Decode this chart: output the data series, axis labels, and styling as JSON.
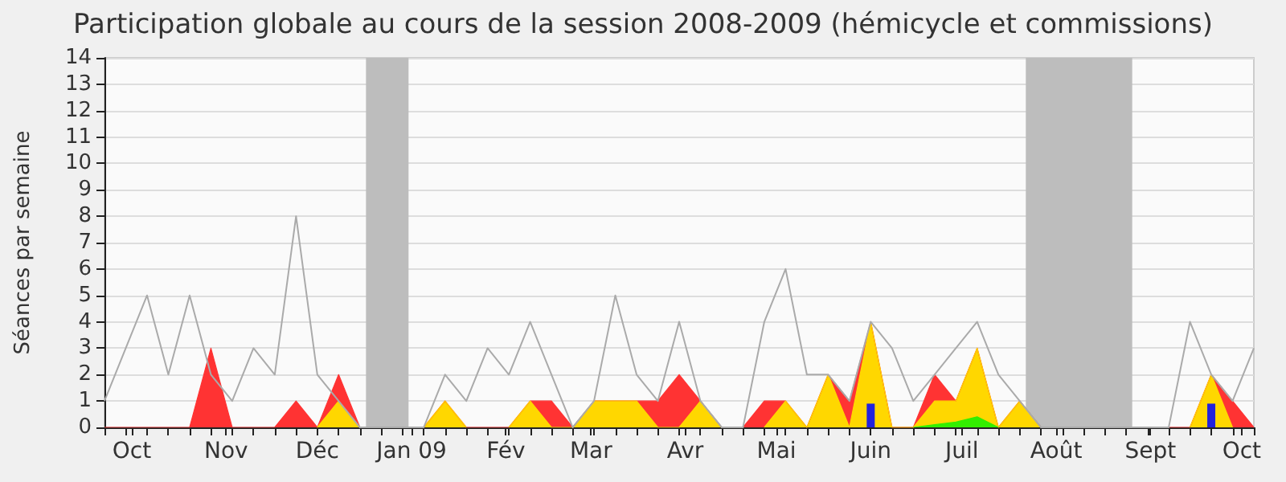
{
  "chart_data": {
    "type": "area",
    "title": "Participation globale au cours de la session 2008-2009 (hémicycle et commissions)",
    "ylabel": "Séances par semaine",
    "x": [
      "2008-09-22",
      "2008-09-29",
      "2008-10-06",
      "2008-10-13",
      "2008-10-20",
      "2008-10-27",
      "2008-11-03",
      "2008-11-10",
      "2008-11-17",
      "2008-11-24",
      "2008-12-01",
      "2008-12-08",
      "2008-12-15",
      "2008-12-22",
      "2008-12-29",
      "2009-01-05",
      "2009-01-12",
      "2009-01-19",
      "2009-01-26",
      "2009-02-02",
      "2009-02-09",
      "2009-02-16",
      "2009-02-23",
      "2009-03-02",
      "2009-03-09",
      "2009-03-16",
      "2009-03-23",
      "2009-03-30",
      "2009-04-06",
      "2009-04-13",
      "2009-04-20",
      "2009-04-27",
      "2009-05-04",
      "2009-05-11",
      "2009-05-18",
      "2009-05-25",
      "2009-06-01",
      "2009-06-08",
      "2009-06-15",
      "2009-06-22",
      "2009-06-29",
      "2009-07-06",
      "2009-07-13",
      "2009-07-20",
      "2009-07-27",
      "2009-08-03",
      "2009-08-10",
      "2009-08-17",
      "2009-08-24",
      "2009-08-31",
      "2009-09-07",
      "2009-09-14",
      "2009-09-21",
      "2009-09-28",
      "2009-10-05"
    ],
    "series": [
      {
        "color": "#ff3333",
        "values": [
          0,
          0,
          0,
          0,
          0,
          3,
          0,
          0,
          0,
          1,
          0,
          2,
          0,
          0,
          0,
          0,
          1,
          0,
          0,
          0,
          1,
          1,
          0,
          1,
          1,
          1,
          1,
          2,
          1,
          0,
          0,
          1,
          1,
          0,
          2,
          1,
          4,
          0,
          0,
          2,
          1,
          3,
          0,
          1,
          0,
          0,
          0,
          0,
          0,
          0,
          0,
          0,
          2,
          1,
          0
        ]
      },
      {
        "color": "#ffd700",
        "values": [
          null,
          null,
          null,
          null,
          null,
          null,
          null,
          null,
          null,
          null,
          0,
          1,
          0,
          null,
          null,
          0,
          1,
          0,
          null,
          0,
          1,
          0,
          0,
          1,
          1,
          1,
          0,
          0,
          1,
          0,
          null,
          0,
          1,
          0,
          2,
          0,
          4,
          0,
          0,
          1,
          1,
          3,
          0,
          1,
          0,
          null,
          null,
          null,
          null,
          null,
          null,
          0,
          2,
          0,
          null
        ]
      },
      {
        "color": "#33ee00",
        "values": [
          null,
          null,
          null,
          null,
          null,
          null,
          null,
          null,
          null,
          null,
          null,
          null,
          null,
          null,
          null,
          null,
          null,
          null,
          null,
          null,
          null,
          null,
          null,
          null,
          null,
          null,
          null,
          null,
          null,
          null,
          null,
          null,
          null,
          null,
          null,
          null,
          null,
          null,
          0,
          0.1,
          0.2,
          0.4,
          0,
          null,
          null,
          null,
          null,
          null,
          null,
          null,
          null,
          null,
          null,
          null,
          null
        ]
      },
      {
        "type": "bar",
        "color": "#2222dd",
        "values": [
          null,
          null,
          null,
          null,
          null,
          null,
          null,
          null,
          null,
          null,
          null,
          null,
          null,
          null,
          null,
          null,
          null,
          null,
          null,
          null,
          null,
          null,
          null,
          null,
          null,
          null,
          null,
          null,
          null,
          null,
          null,
          null,
          null,
          null,
          null,
          null,
          0.9,
          null,
          null,
          null,
          null,
          null,
          null,
          null,
          null,
          null,
          null,
          null,
          null,
          null,
          null,
          null,
          0.9,
          null,
          null
        ]
      },
      {
        "type": "line",
        "color": "#aaaaaa",
        "values": [
          1,
          3,
          5,
          2,
          5,
          2,
          1,
          3,
          2,
          8,
          2,
          1,
          0,
          0,
          0,
          0,
          2,
          1,
          3,
          2,
          4,
          2,
          0,
          1,
          5,
          2,
          1,
          4,
          1,
          0,
          0,
          4,
          6,
          2,
          2,
          1,
          4,
          3,
          1,
          2,
          3,
          4,
          2,
          1,
          0,
          0,
          0,
          0,
          0,
          0,
          0,
          4,
          2,
          1,
          3
        ]
      }
    ],
    "xlim": [
      "2008-09-22",
      "2009-10-05"
    ],
    "xticks": [
      {
        "value": "2008-09-22",
        "label": null
      },
      {
        "value": "2008-09-29",
        "label": null
      },
      {
        "value": "2008-10-06",
        "label": null
      },
      {
        "value": "2008-10-13",
        "label": null
      },
      {
        "value": "2008-10-20",
        "label": null
      },
      {
        "value": "2008-10-27",
        "label": null
      },
      {
        "value": "2008-11-03",
        "label": null
      },
      {
        "value": "2008-11-10",
        "label": null
      },
      {
        "value": "2008-11-17",
        "label": null
      },
      {
        "value": "2008-11-24",
        "label": null
      },
      {
        "value": "2008-12-01",
        "label": null
      },
      {
        "value": "2008-12-08",
        "label": null
      },
      {
        "value": "2008-12-15",
        "label": null
      },
      {
        "value": "2008-12-22",
        "label": null
      },
      {
        "value": "2008-12-29",
        "label": null
      },
      {
        "value": "2009-01-05",
        "label": null
      },
      {
        "value": "2009-01-12",
        "label": null
      },
      {
        "value": "2009-01-19",
        "label": null
      },
      {
        "value": "2009-01-26",
        "label": null
      },
      {
        "value": "2009-02-02",
        "label": null
      },
      {
        "value": "2009-02-09",
        "label": null
      },
      {
        "value": "2009-02-16",
        "label": null
      },
      {
        "value": "2009-02-23",
        "label": null
      },
      {
        "value": "2009-03-02",
        "label": null
      },
      {
        "value": "2009-03-09",
        "label": null
      },
      {
        "value": "2009-03-16",
        "label": null
      },
      {
        "value": "2009-03-23",
        "label": null
      },
      {
        "value": "2009-03-30",
        "label": null
      },
      {
        "value": "2009-04-06",
        "label": null
      },
      {
        "value": "2009-04-13",
        "label": null
      },
      {
        "value": "2009-04-20",
        "label": null
      },
      {
        "value": "2009-04-27",
        "label": null
      },
      {
        "value": "2009-05-04",
        "label": null
      },
      {
        "value": "2009-05-11",
        "label": null
      },
      {
        "value": "2009-05-18",
        "label": null
      },
      {
        "value": "2009-05-25",
        "label": null
      },
      {
        "value": "2009-06-01",
        "label": null
      },
      {
        "value": "2009-06-08",
        "label": null
      },
      {
        "value": "2009-06-15",
        "label": null
      },
      {
        "value": "2009-06-22",
        "label": null
      },
      {
        "value": "2009-06-29",
        "label": null
      },
      {
        "value": "2009-07-06",
        "label": null
      },
      {
        "value": "2009-07-13",
        "label": null
      },
      {
        "value": "2009-07-20",
        "label": null
      },
      {
        "value": "2009-07-27",
        "label": null
      },
      {
        "value": "2009-08-03",
        "label": null
      },
      {
        "value": "2009-08-10",
        "label": null
      },
      {
        "value": "2009-08-17",
        "label": null
      },
      {
        "value": "2009-08-24",
        "label": null
      },
      {
        "value": "2009-08-31",
        "label": null
      },
      {
        "value": "2009-09-07",
        "label": null
      },
      {
        "value": "2009-09-14",
        "label": null
      },
      {
        "value": "2009-09-21",
        "label": null
      },
      {
        "value": "2009-09-28",
        "label": null
      },
      {
        "value": "2009-10-05",
        "label": null
      },
      {
        "value": "2008-10-01",
        "label": "Oct"
      },
      {
        "value": "2008-11-01",
        "label": "Nov"
      },
      {
        "value": "2008-12-01",
        "label": "Déc"
      },
      {
        "value": "2009-01-01",
        "label": "Jan 09"
      },
      {
        "value": "2009-02-01",
        "label": "Fév"
      },
      {
        "value": "2009-03-01",
        "label": "Mar"
      },
      {
        "value": "2009-04-01",
        "label": "Avr"
      },
      {
        "value": "2009-05-01",
        "label": "Mai"
      },
      {
        "value": "2009-06-01",
        "label": "Juin"
      },
      {
        "value": "2009-07-01",
        "label": "Juil"
      },
      {
        "value": "2009-08-01",
        "label": "Août"
      },
      {
        "value": "2009-09-01",
        "label": "Sept"
      },
      {
        "value": "2009-10-01",
        "label": "Oct"
      }
    ],
    "ylim": [
      0,
      14
    ],
    "yticks": [
      0,
      1,
      2,
      3,
      4,
      5,
      6,
      7,
      8,
      9,
      10,
      11,
      12,
      13,
      14
    ],
    "bands": [
      {
        "axis": "x",
        "from": "2008-12-17",
        "to": "2008-12-31",
        "color": "#bdbdbd"
      },
      {
        "axis": "x",
        "from": "2009-07-22",
        "to": "2009-08-26",
        "color": "#bdbdbd"
      }
    ],
    "grid": "y",
    "marker": "none",
    "line_style": "solid"
  }
}
